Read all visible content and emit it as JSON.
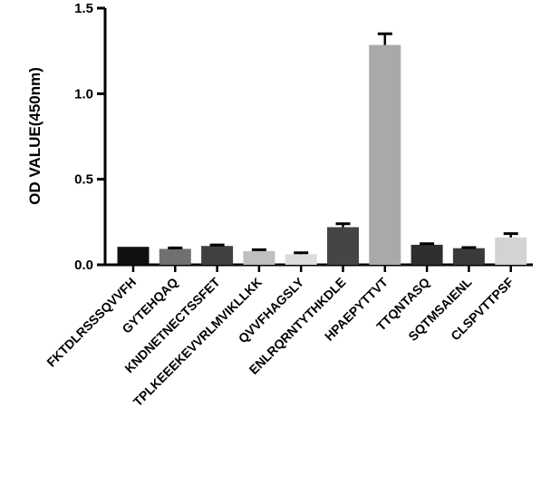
{
  "chart_data": {
    "type": "bar",
    "title": "",
    "xlabel": "",
    "ylabel": "OD VALUE(450nm)",
    "ylim": [
      0,
      1.5
    ],
    "yticks": [
      0.0,
      0.5,
      1.0,
      1.5
    ],
    "ytick_labels": [
      "0.0",
      "0.5",
      "1.0",
      "1.5"
    ],
    "grid": false,
    "legend": "none",
    "categories": [
      "FKTDLRSSSQVVFH",
      "GYTEHQAQ",
      "KNDNETNECTSSFET",
      "TPLKEEEKEVVRLMVIKLLKK",
      "QVVFHAGSLY",
      "ENLRQRNTYTHKDLE",
      "HPAEPYTTVT",
      "TTQNTASQ",
      "SQTMSAIENL",
      "CLSPVTTPSF"
    ],
    "values": [
      0.105,
      0.093,
      0.11,
      0.08,
      0.062,
      0.22,
      1.285,
      0.117,
      0.097,
      0.16
    ],
    "errors": [
      0.0,
      0.006,
      0.006,
      0.008,
      0.008,
      0.02,
      0.065,
      0.006,
      0.004,
      0.022
    ],
    "bar_colors": [
      "#111111",
      "#707070",
      "#404040",
      "#bfbfbf",
      "#dcdcdc",
      "#454545",
      "#a9a9a9",
      "#2e2e2e",
      "#3a3a3a",
      "#d3d3d3"
    ],
    "axis_color": "#000000"
  }
}
